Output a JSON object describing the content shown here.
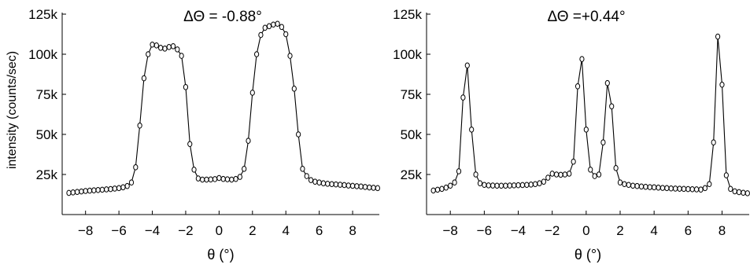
{
  "chart_data": [
    {
      "type": "line",
      "title": "ΔΘ = -0.88°",
      "xlabel": "θ (°)",
      "ylabel": "intensity (counts/sec)",
      "xlim": [
        -9.4,
        9.6
      ],
      "ylim": [
        0,
        125000
      ],
      "xticks": [
        -8,
        -6,
        -4,
        -2,
        0,
        2,
        4,
        6,
        8
      ],
      "xtick_labels": [
        "−8",
        "−6",
        "−4",
        "−2",
        "0",
        "2",
        "4",
        "6",
        "8"
      ],
      "yticks": [
        25000,
        50000,
        75000,
        100000,
        125000
      ],
      "ytick_labels": [
        "25k",
        "50k",
        "75k",
        "100k",
        "125k"
      ],
      "marker": "open-circle",
      "line_color": "#000000",
      "grid": false,
      "legend": false,
      "series": [
        {
          "x": [
            -9.0,
            -8.75,
            -8.5,
            -8.25,
            -8.0,
            -7.75,
            -7.5,
            -7.25,
            -7.0,
            -6.75,
            -6.5,
            -6.25,
            -6.0,
            -5.75,
            -5.5,
            -5.25,
            -5.0,
            -4.75,
            -4.5,
            -4.25,
            -4.0,
            -3.75,
            -3.5,
            -3.25,
            -3.0,
            -2.75,
            -2.5,
            -2.25,
            -2.0,
            -1.75,
            -1.5,
            -1.25,
            -1.0,
            -0.75,
            -0.5,
            -0.25,
            0.0,
            0.25,
            0.5,
            0.75,
            1.0,
            1.25,
            1.5,
            1.75,
            2.0,
            2.25,
            2.5,
            2.75,
            3.0,
            3.25,
            3.5,
            3.75,
            4.0,
            4.25,
            4.5,
            4.75,
            5.0,
            5.25,
            5.5,
            5.75,
            6.0,
            6.25,
            6.5,
            6.75,
            7.0,
            7.25,
            7.5,
            7.75,
            8.0,
            8.25,
            8.5,
            8.75,
            9.0,
            9.25,
            9.5
          ],
          "y": [
            13500,
            13800,
            14100,
            14400,
            14700,
            14900,
            15100,
            15300,
            15500,
            15700,
            15900,
            16200,
            16500,
            17000,
            17800,
            20000,
            29500,
            55500,
            85000,
            100000,
            106000,
            105500,
            104000,
            103500,
            104500,
            105000,
            103000,
            99000,
            79500,
            44000,
            28000,
            22500,
            21800,
            21800,
            21900,
            22100,
            22800,
            22200,
            22000,
            21800,
            22200,
            23500,
            28500,
            46000,
            76000,
            100000,
            112000,
            116500,
            117500,
            118500,
            119000,
            117000,
            112500,
            99000,
            78500,
            50000,
            28500,
            24000,
            21500,
            20500,
            20000,
            19500,
            19200,
            19000,
            18800,
            18600,
            18400,
            18100,
            17900,
            17700,
            17500,
            17200,
            16900,
            16700,
            16500
          ]
        }
      ]
    },
    {
      "type": "line",
      "title": "ΔΘ =+0.44°",
      "xlabel": "θ (°)",
      "ylabel": "",
      "xlim": [
        -9.4,
        9.6
      ],
      "ylim": [
        0,
        125000
      ],
      "xticks": [
        -8,
        -6,
        -4,
        -2,
        0,
        2,
        4,
        6,
        8
      ],
      "xtick_labels": [
        "−8",
        "−6",
        "−4",
        "−2",
        "0",
        "2",
        "4",
        "6",
        "8"
      ],
      "yticks": [
        25000,
        50000,
        75000,
        100000,
        125000
      ],
      "ytick_labels": [
        "25k",
        "50k",
        "75k",
        "100k",
        "125k"
      ],
      "marker": "open-circle",
      "line_color": "#000000",
      "grid": false,
      "legend": false,
      "series": [
        {
          "x": [
            -9.0,
            -8.75,
            -8.5,
            -8.25,
            -8.0,
            -7.75,
            -7.5,
            -7.25,
            -7.0,
            -6.75,
            -6.5,
            -6.25,
            -6.0,
            -5.75,
            -5.5,
            -5.25,
            -5.0,
            -4.75,
            -4.5,
            -4.25,
            -4.0,
            -3.75,
            -3.5,
            -3.25,
            -3.0,
            -2.75,
            -2.5,
            -2.25,
            -2.0,
            -1.75,
            -1.5,
            -1.25,
            -1.0,
            -0.75,
            -0.5,
            -0.25,
            0.0,
            0.25,
            0.5,
            0.75,
            1.0,
            1.25,
            1.5,
            1.75,
            2.0,
            2.25,
            2.5,
            2.75,
            3.0,
            3.25,
            3.5,
            3.75,
            4.0,
            4.25,
            4.5,
            4.75,
            5.0,
            5.25,
            5.5,
            5.75,
            6.0,
            6.25,
            6.5,
            6.75,
            7.0,
            7.25,
            7.5,
            7.75,
            8.0,
            8.25,
            8.5,
            8.75,
            9.0,
            9.25,
            9.5
          ],
          "y": [
            15000,
            15500,
            16000,
            16800,
            18000,
            20000,
            27000,
            73000,
            93000,
            53000,
            25000,
            19500,
            18500,
            18200,
            18100,
            18000,
            18000,
            18000,
            18100,
            18200,
            18300,
            18400,
            18500,
            18700,
            19000,
            19500,
            20500,
            23000,
            25500,
            25000,
            24800,
            25000,
            25500,
            33000,
            80000,
            97000,
            53000,
            28000,
            24000,
            25000,
            45000,
            82000,
            67500,
            29000,
            20000,
            19000,
            18500,
            18000,
            17800,
            17500,
            17300,
            17100,
            17000,
            16800,
            16600,
            16500,
            16300,
            16200,
            16100,
            16000,
            15900,
            15800,
            15700,
            15600,
            16500,
            19000,
            45000,
            111000,
            81000,
            24500,
            16000,
            14500,
            14000,
            13600,
            13300
          ]
        }
      ]
    }
  ]
}
